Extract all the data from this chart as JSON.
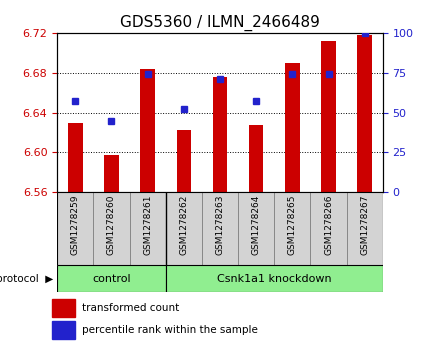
{
  "title": "GDS5360 / ILMN_2466489",
  "samples": [
    "GSM1278259",
    "GSM1278260",
    "GSM1278261",
    "GSM1278262",
    "GSM1278263",
    "GSM1278264",
    "GSM1278265",
    "GSM1278266",
    "GSM1278267"
  ],
  "transformed_count": [
    6.63,
    6.597,
    6.684,
    6.622,
    6.676,
    6.628,
    6.69,
    6.712,
    6.718
  ],
  "percentile_rank": [
    57,
    45,
    74,
    52,
    71,
    57,
    74,
    74,
    100
  ],
  "ylim_left": [
    6.56,
    6.72
  ],
  "ylim_right": [
    0,
    100
  ],
  "yticks_left": [
    6.56,
    6.6,
    6.64,
    6.68,
    6.72
  ],
  "yticks_right": [
    0,
    25,
    50,
    75,
    100
  ],
  "bar_color": "#CC0000",
  "dot_color": "#2222CC",
  "bar_bottom": 6.56,
  "bar_width": 0.4,
  "control_count": 3,
  "protocol_label": "protocol",
  "group_labels": [
    "control",
    "Csnk1a1 knockdown"
  ],
  "group_color": "#90EE90",
  "legend_items": [
    {
      "label": "transformed count",
      "color": "#CC0000"
    },
    {
      "label": "percentile rank within the sample",
      "color": "#2222CC"
    }
  ],
  "background_color": "#ffffff",
  "plot_bg_color": "#ffffff",
  "label_bg_color": "#D3D3D3",
  "tick_label_color_left": "#CC0000",
  "tick_label_color_right": "#2222CC",
  "title_fontsize": 11,
  "tick_fontsize": 8,
  "label_fontsize": 6.5,
  "legend_fontsize": 7.5,
  "protocol_fontsize": 8
}
